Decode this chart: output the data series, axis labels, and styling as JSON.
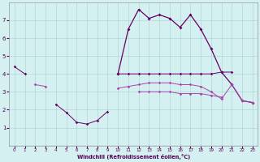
{
  "x": [
    0,
    1,
    2,
    3,
    4,
    5,
    6,
    7,
    8,
    9,
    10,
    11,
    12,
    13,
    14,
    15,
    16,
    17,
    18,
    19,
    20,
    21,
    22,
    23
  ],
  "line_top": [
    null,
    null,
    null,
    null,
    null,
    null,
    null,
    null,
    null,
    null,
    null,
    6.5,
    7.6,
    7.1,
    7.3,
    7.1,
    6.6,
    7.3,
    null,
    null,
    null,
    null,
    null,
    null
  ],
  "line_upper_flat": [
    4.4,
    4.0,
    null,
    null,
    null,
    null,
    null,
    null,
    null,
    null,
    4.0,
    4.0,
    4.0,
    4.0,
    4.0,
    4.0,
    4.0,
    4.0,
    4.0,
    4.0,
    4.1,
    4.1,
    null,
    null
  ],
  "line_mid": [
    null,
    null,
    3.4,
    3.3,
    null,
    null,
    null,
    null,
    null,
    null,
    3.2,
    3.3,
    3.4,
    3.5,
    3.5,
    3.5,
    3.4,
    3.4,
    3.3,
    3.0,
    2.6,
    3.4,
    2.5,
    2.4
  ],
  "line_lower_flat": [
    null,
    null,
    null,
    null,
    null,
    null,
    null,
    null,
    null,
    null,
    null,
    null,
    3.0,
    3.0,
    3.0,
    3.0,
    2.9,
    2.9,
    2.9,
    2.8,
    2.7,
    null,
    null,
    null
  ],
  "line_bottom": [
    null,
    null,
    null,
    null,
    2.3,
    1.85,
    1.3,
    1.2,
    1.4,
    1.9,
    null,
    null,
    null,
    null,
    null,
    null,
    null,
    null,
    null,
    null,
    null,
    null,
    null,
    null
  ],
  "line_main": [
    null,
    null,
    null,
    null,
    null,
    null,
    null,
    null,
    null,
    null,
    4.0,
    6.5,
    7.6,
    7.1,
    7.3,
    7.1,
    6.6,
    7.3,
    6.5,
    5.4,
    4.1,
    3.4,
    2.5,
    2.4
  ],
  "bg_color": "#d4f0f0",
  "grid_color": "#b0d8d8",
  "line_dark": "#660066",
  "line_mid_color": "#aa44aa",
  "xlabel": "Windchill (Refroidissement éolien,°C)",
  "xlim": [
    -0.5,
    23.5
  ],
  "ylim": [
    0,
    8
  ],
  "yticks": [
    1,
    2,
    3,
    4,
    5,
    6,
    7
  ],
  "xticks": [
    0,
    1,
    2,
    3,
    4,
    5,
    6,
    7,
    8,
    9,
    10,
    11,
    12,
    13,
    14,
    15,
    16,
    17,
    18,
    19,
    20,
    21,
    22,
    23
  ]
}
